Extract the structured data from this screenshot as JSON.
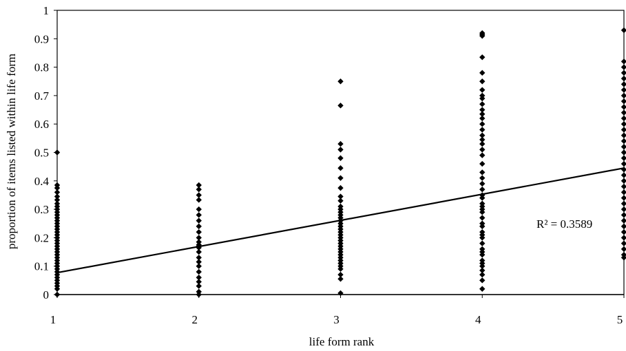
{
  "chart_data": {
    "type": "scatter",
    "xlabel": "life form rank",
    "ylabel": "proportion of items listed within life form",
    "xlim": [
      1,
      5
    ],
    "ylim": [
      0,
      1
    ],
    "x_ticks": [
      "1",
      "2",
      "3",
      "4",
      "5"
    ],
    "y_ticks": [
      "0",
      "0.1",
      "0.2",
      "0.3",
      "0.4",
      "0.5",
      "0.6",
      "0.7",
      "0.8",
      "0.9",
      "1"
    ],
    "grid": false,
    "legend": "none",
    "marker_color": "#000000",
    "series": [
      {
        "points": [
          [
            1,
            0.5
          ],
          [
            1,
            0.385
          ],
          [
            1,
            0.375
          ],
          [
            1,
            0.36
          ],
          [
            1,
            0.345
          ],
          [
            1,
            0.333
          ],
          [
            1,
            0.32
          ],
          [
            1,
            0.31
          ],
          [
            1,
            0.3
          ],
          [
            1,
            0.29
          ],
          [
            1,
            0.28
          ],
          [
            1,
            0.27
          ],
          [
            1,
            0.26
          ],
          [
            1,
            0.25
          ],
          [
            1,
            0.24
          ],
          [
            1,
            0.23
          ],
          [
            1,
            0.22
          ],
          [
            1,
            0.21
          ],
          [
            1,
            0.2
          ],
          [
            1,
            0.19
          ],
          [
            1,
            0.18
          ],
          [
            1,
            0.17
          ],
          [
            1,
            0.16
          ],
          [
            1,
            0.15
          ],
          [
            1,
            0.14
          ],
          [
            1,
            0.13
          ],
          [
            1,
            0.12
          ],
          [
            1,
            0.11
          ],
          [
            1,
            0.1
          ],
          [
            1,
            0.09
          ],
          [
            1,
            0.08
          ],
          [
            1,
            0.07
          ],
          [
            1,
            0.06
          ],
          [
            1,
            0.05
          ],
          [
            1,
            0.04
          ],
          [
            1,
            0.03
          ],
          [
            1,
            0.02
          ],
          [
            1,
            0.0
          ],
          [
            2,
            0.385
          ],
          [
            2,
            0.37
          ],
          [
            2,
            0.35
          ],
          [
            2,
            0.333
          ],
          [
            2,
            0.3
          ],
          [
            2,
            0.28
          ],
          [
            2,
            0.26
          ],
          [
            2,
            0.24
          ],
          [
            2,
            0.22
          ],
          [
            2,
            0.2
          ],
          [
            2,
            0.185
          ],
          [
            2,
            0.175
          ],
          [
            2,
            0.17
          ],
          [
            2,
            0.165
          ],
          [
            2,
            0.15
          ],
          [
            2,
            0.13
          ],
          [
            2,
            0.115
          ],
          [
            2,
            0.1
          ],
          [
            2,
            0.08
          ],
          [
            2,
            0.06
          ],
          [
            2,
            0.045
          ],
          [
            2,
            0.03
          ],
          [
            2,
            0.01
          ],
          [
            2,
            0.0
          ],
          [
            3,
            0.75
          ],
          [
            3,
            0.665
          ],
          [
            3,
            0.53
          ],
          [
            3,
            0.51
          ],
          [
            3,
            0.48
          ],
          [
            3,
            0.445
          ],
          [
            3,
            0.41
          ],
          [
            3,
            0.375
          ],
          [
            3,
            0.345
          ],
          [
            3,
            0.33
          ],
          [
            3,
            0.31
          ],
          [
            3,
            0.3
          ],
          [
            3,
            0.29
          ],
          [
            3,
            0.28
          ],
          [
            3,
            0.27
          ],
          [
            3,
            0.26
          ],
          [
            3,
            0.25
          ],
          [
            3,
            0.24
          ],
          [
            3,
            0.23
          ],
          [
            3,
            0.22
          ],
          [
            3,
            0.21
          ],
          [
            3,
            0.2
          ],
          [
            3,
            0.19
          ],
          [
            3,
            0.18
          ],
          [
            3,
            0.17
          ],
          [
            3,
            0.16
          ],
          [
            3,
            0.15
          ],
          [
            3,
            0.14
          ],
          [
            3,
            0.13
          ],
          [
            3,
            0.12
          ],
          [
            3,
            0.11
          ],
          [
            3,
            0.1
          ],
          [
            3,
            0.09
          ],
          [
            3,
            0.07
          ],
          [
            3,
            0.055
          ],
          [
            3,
            0.005
          ],
          [
            4,
            0.92
          ],
          [
            4,
            0.915
          ],
          [
            4,
            0.91
          ],
          [
            4,
            0.835
          ],
          [
            4,
            0.78
          ],
          [
            4,
            0.75
          ],
          [
            4,
            0.72
          ],
          [
            4,
            0.7
          ],
          [
            4,
            0.69
          ],
          [
            4,
            0.67
          ],
          [
            4,
            0.65
          ],
          [
            4,
            0.635
          ],
          [
            4,
            0.62
          ],
          [
            4,
            0.6
          ],
          [
            4,
            0.58
          ],
          [
            4,
            0.56
          ],
          [
            4,
            0.545
          ],
          [
            4,
            0.53
          ],
          [
            4,
            0.51
          ],
          [
            4,
            0.49
          ],
          [
            4,
            0.46
          ],
          [
            4,
            0.43
          ],
          [
            4,
            0.41
          ],
          [
            4,
            0.39
          ],
          [
            4,
            0.37
          ],
          [
            4,
            0.35
          ],
          [
            4,
            0.34
          ],
          [
            4,
            0.32
          ],
          [
            4,
            0.31
          ],
          [
            4,
            0.3
          ],
          [
            4,
            0.29
          ],
          [
            4,
            0.27
          ],
          [
            4,
            0.25
          ],
          [
            4,
            0.24
          ],
          [
            4,
            0.22
          ],
          [
            4,
            0.21
          ],
          [
            4,
            0.2
          ],
          [
            4,
            0.18
          ],
          [
            4,
            0.16
          ],
          [
            4,
            0.15
          ],
          [
            4,
            0.14
          ],
          [
            4,
            0.12
          ],
          [
            4,
            0.11
          ],
          [
            4,
            0.1
          ],
          [
            4,
            0.085
          ],
          [
            4,
            0.07
          ],
          [
            4,
            0.05
          ],
          [
            4,
            0.02
          ],
          [
            5,
            0.93
          ],
          [
            5,
            0.82
          ],
          [
            5,
            0.8
          ],
          [
            5,
            0.78
          ],
          [
            5,
            0.76
          ],
          [
            5,
            0.74
          ],
          [
            5,
            0.72
          ],
          [
            5,
            0.7
          ],
          [
            5,
            0.68
          ],
          [
            5,
            0.66
          ],
          [
            5,
            0.64
          ],
          [
            5,
            0.62
          ],
          [
            5,
            0.6
          ],
          [
            5,
            0.58
          ],
          [
            5,
            0.56
          ],
          [
            5,
            0.54
          ],
          [
            5,
            0.52
          ],
          [
            5,
            0.5
          ],
          [
            5,
            0.48
          ],
          [
            5,
            0.46
          ],
          [
            5,
            0.44
          ],
          [
            5,
            0.42
          ],
          [
            5,
            0.4
          ],
          [
            5,
            0.38
          ],
          [
            5,
            0.36
          ],
          [
            5,
            0.34
          ],
          [
            5,
            0.32
          ],
          [
            5,
            0.3
          ],
          [
            5,
            0.28
          ],
          [
            5,
            0.26
          ],
          [
            5,
            0.24
          ],
          [
            5,
            0.22
          ],
          [
            5,
            0.2
          ],
          [
            5,
            0.18
          ],
          [
            5,
            0.16
          ],
          [
            5,
            0.14
          ],
          [
            5,
            0.13
          ]
        ]
      }
    ],
    "trendline": {
      "type": "linear",
      "x": [
        1,
        5
      ],
      "y": [
        0.077,
        0.445
      ],
      "label": "R² = 0.3589"
    }
  }
}
